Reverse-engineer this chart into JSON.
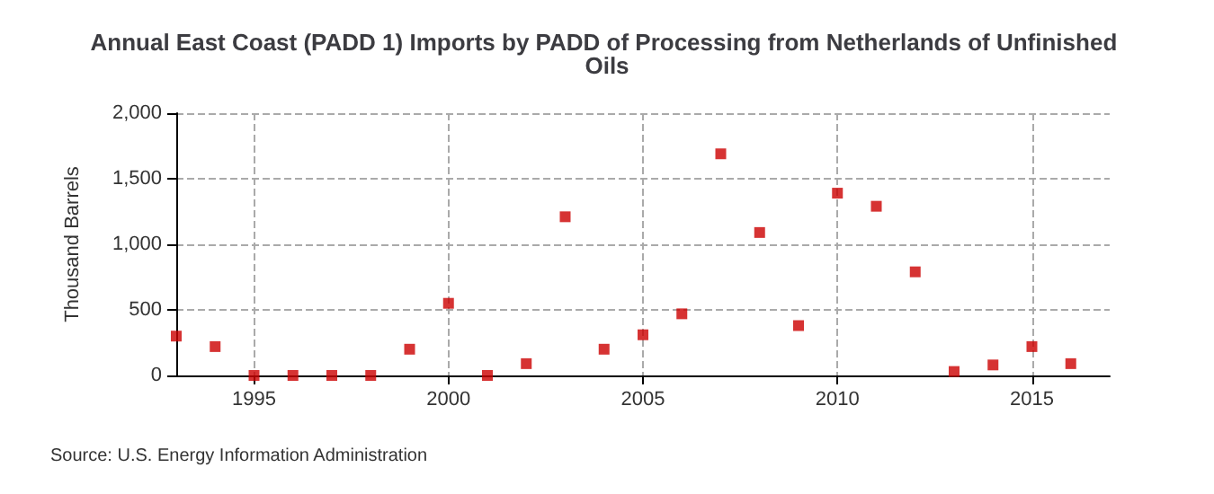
{
  "chart_data": {
    "type": "scatter",
    "title": "Annual East Coast (PADD 1) Imports by PADD of Processing from Netherlands of Unfinished Oils",
    "ylabel": "Thousand Barrels",
    "x": [
      1993,
      1994,
      1995,
      1996,
      1997,
      1998,
      1999,
      2000,
      2001,
      2002,
      2003,
      2004,
      2005,
      2006,
      2007,
      2008,
      2009,
      2010,
      2011,
      2012,
      2013,
      2014,
      2015,
      2016
    ],
    "series": [
      {
        "color": "#cc0000",
        "values": [
          300,
          220,
          0,
          0,
          0,
          0,
          200,
          550,
          0,
          90,
          1210,
          200,
          310,
          470,
          1690,
          1090,
          380,
          1390,
          1290,
          790,
          30,
          80,
          220,
          90
        ]
      }
    ],
    "xlim": [
      1993,
      2017
    ],
    "xticks": [
      1995,
      2000,
      2005,
      2010,
      2015
    ],
    "ylim": [
      0,
      2000
    ],
    "yticks": [
      {
        "value": 0,
        "label": "0"
      },
      {
        "value": 500,
        "label": "500"
      },
      {
        "value": 1000,
        "label": "1,000"
      },
      {
        "value": 1500,
        "label": "1,500"
      },
      {
        "value": 2000,
        "label": "2,000"
      }
    ],
    "grid": true,
    "marker": "square",
    "annotations": [
      "Source: U.S. Energy Information Administration"
    ]
  }
}
